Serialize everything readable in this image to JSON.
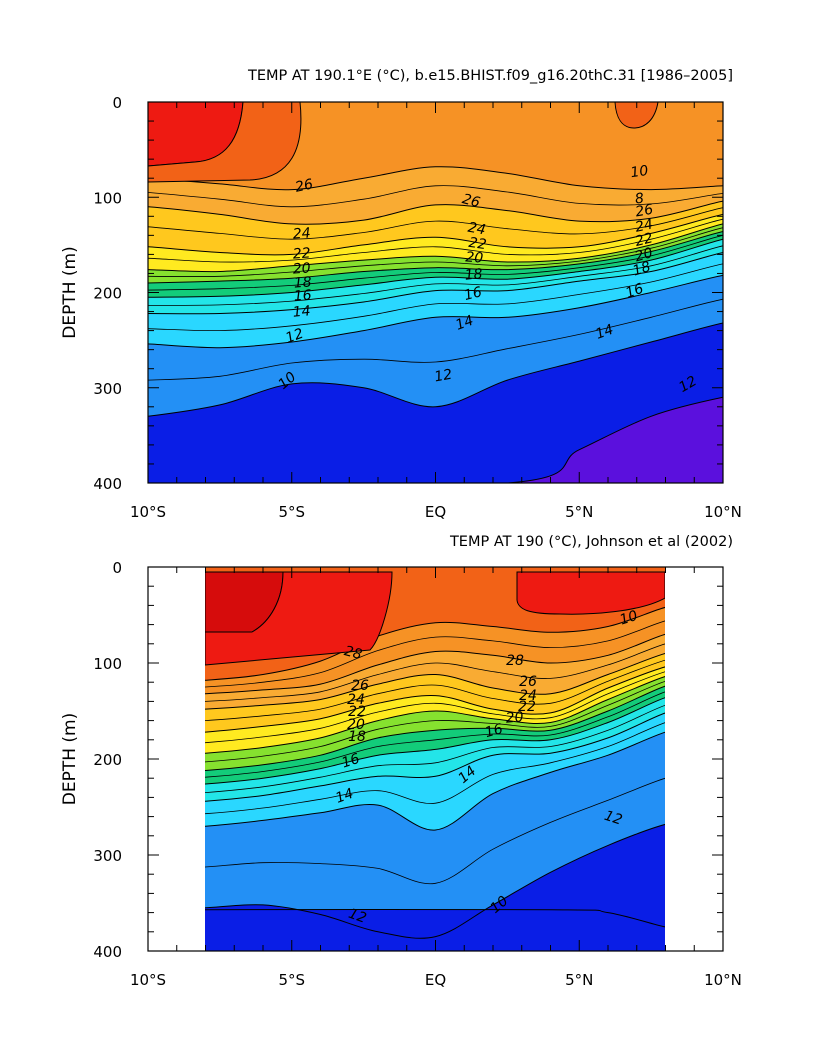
{
  "colors": {
    "t8": "#5b10dd",
    "t9": "#0a1ee6",
    "t10": "#1f5ff5",
    "t11": "#2390f5",
    "t12": "#1fbaf8",
    "t13": "#2ad7ff",
    "t14": "#23e5e8",
    "t15": "#17d6b8",
    "t16": "#13cc7a",
    "t17": "#2bd12b",
    "t18": "#86e12f",
    "t19": "#e8f030",
    "t20": "#ffea20",
    "t22": "#ffc81e",
    "t24": "#f9ab33",
    "t26": "#f69225",
    "t28": "#f26217",
    "t29": "#ee1a12",
    "t30": "#d60c0c"
  },
  "chart_data": [
    {
      "type": "contour",
      "title": "TEMP AT 190.1°E (°C), b.e15.BHIST.f09_g16.20thC.31 [1986–2005]",
      "ylabel": "DEPTH (m)",
      "xlabel": "",
      "xlim": [
        -10,
        10
      ],
      "ylim": [
        400,
        0
      ],
      "x_ticks": [
        "10°S",
        "5°S",
        "EQ",
        "5°N",
        "10°N"
      ],
      "y_ticks": [
        "0",
        "100",
        "200",
        "300",
        "400"
      ],
      "contour_interval": 1,
      "contour_labels": [
        "26",
        "24",
        "22",
        "20",
        "18",
        "16",
        "14",
        "12",
        "10",
        "26",
        "24",
        "22",
        "20",
        "18",
        "16",
        "14",
        "12",
        "10",
        "8",
        "26",
        "24",
        "22",
        "20",
        "18",
        "16",
        "14",
        "12",
        "10"
      ],
      "isotherm_depths_m": {
        "x": [
          -10,
          -7.5,
          -5,
          -2.5,
          0,
          2.5,
          5,
          7.5,
          10
        ],
        "t28": [
          null,
          null,
          null,
          null,
          null,
          null,
          null,
          null,
          null
        ],
        "t26": [
          80,
          86,
          92,
          80,
          68,
          75,
          88,
          92,
          88
        ],
        "t24": [
          110,
          118,
          128,
          124,
          108,
          114,
          125,
          122,
          104
        ],
        "t22": [
          152,
          158,
          160,
          150,
          142,
          152,
          152,
          138,
          118
        ],
        "t20": [
          176,
          178,
          172,
          166,
          162,
          168,
          164,
          150,
          128
        ],
        "t18": [
          190,
          188,
          185,
          178,
          174,
          176,
          170,
          157,
          136
        ],
        "t16": [
          205,
          204,
          200,
          192,
          184,
          186,
          178,
          166,
          144
        ],
        "t14": [
          222,
          222,
          218,
          210,
          198,
          198,
          188,
          178,
          158
        ],
        "t12": [
          254,
          258,
          252,
          240,
          226,
          226,
          216,
          200,
          182
        ],
        "t10": [
          330,
          318,
          296,
          300,
          320,
          292,
          272,
          252,
          232
        ],
        "t8": [
          null,
          null,
          null,
          null,
          null,
          400,
          365,
          330,
          310
        ]
      }
    },
    {
      "type": "contour",
      "title": "TEMP AT 190 (°C), Johnson et al (2002)",
      "ylabel": "DEPTH (m)",
      "xlabel": "",
      "xlim": [
        -10,
        10
      ],
      "ylim": [
        400,
        0
      ],
      "data_xrange": [
        -8,
        8
      ],
      "x_ticks": [
        "10°S",
        "5°S",
        "EQ",
        "5°N",
        "10°N"
      ],
      "y_ticks": [
        "0",
        "100",
        "200",
        "300",
        "400"
      ],
      "contour_interval": 1,
      "contour_labels": [
        "28",
        "26",
        "24",
        "22",
        "20",
        "18",
        "16",
        "14",
        "12",
        "10",
        "28",
        "26",
        "24",
        "22",
        "20",
        "16",
        "14",
        "12",
        "10",
        "10"
      ],
      "isotherm_depths_m": {
        "x": [
          -8,
          -6,
          -4,
          -2,
          0,
          2,
          4,
          6,
          8
        ],
        "t28": [
          118,
          112,
          98,
          72,
          58,
          62,
          68,
          62,
          42
        ],
        "t26": [
          132,
          128,
          122,
          102,
          88,
          92,
          100,
          92,
          70
        ],
        "t24": [
          148,
          144,
          138,
          122,
          112,
          126,
          132,
          112,
          90
        ],
        "t22": [
          172,
          166,
          158,
          142,
          134,
          148,
          152,
          126,
          104
        ],
        "t20": [
          194,
          188,
          178,
          160,
          150,
          158,
          162,
          138,
          114
        ],
        "t18": [
          212,
          206,
          196,
          178,
          170,
          168,
          170,
          150,
          124
        ],
        "t16": [
          226,
          220,
          210,
          196,
          190,
          180,
          180,
          162,
          136
        ],
        "t14": [
          244,
          238,
          228,
          218,
          218,
          196,
          194,
          178,
          152
        ],
        "t12": [
          270,
          264,
          256,
          248,
          274,
          236,
          214,
          196,
          172
        ],
        "t10": [
          355,
          352,
          362,
          380,
          385,
          352,
          318,
          290,
          268
        ],
        "t9": [
          null,
          null,
          null,
          null,
          null,
          null,
          357,
          360,
          375
        ]
      }
    }
  ]
}
